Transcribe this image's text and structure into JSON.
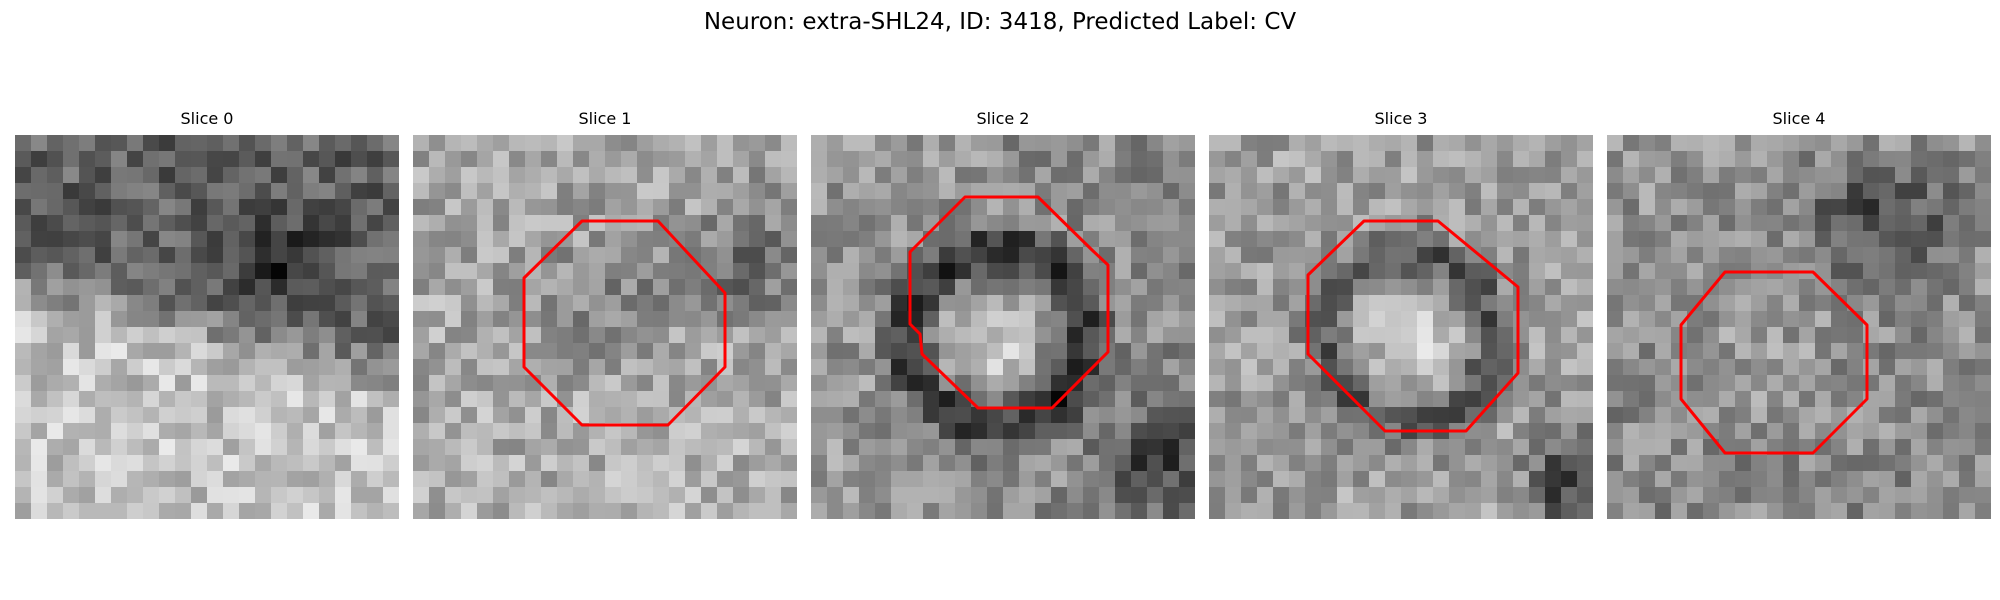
{
  "figure": {
    "title": "Neuron: extra-SHL24, ID: 3418, Predicted Label: CV"
  },
  "panels": [
    {
      "title": "Slice 0",
      "outline": false,
      "outline_color": "#ff0000",
      "image_description_icon": "grayscale-microscopy-tile"
    },
    {
      "title": "Slice 1",
      "outline": true,
      "outline_color": "#ff0000",
      "image_description_icon": "grayscale-microscopy-tile"
    },
    {
      "title": "Slice 2",
      "outline": true,
      "outline_color": "#ff0000",
      "image_description_icon": "grayscale-microscopy-tile"
    },
    {
      "title": "Slice 3",
      "outline": true,
      "outline_color": "#ff0000",
      "image_description_icon": "grayscale-microscopy-tile"
    },
    {
      "title": "Slice 4",
      "outline": true,
      "outline_color": "#ff0000",
      "image_description_icon": "grayscale-microscopy-tile"
    }
  ]
}
